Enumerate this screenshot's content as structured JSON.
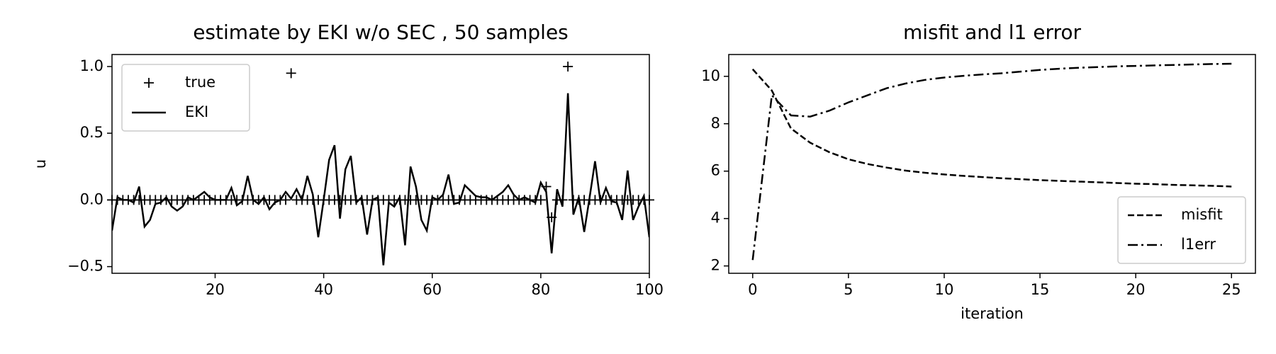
{
  "chart_data": [
    {
      "type": "line",
      "title": "estimate by EKI w/o SEC , 50 samples",
      "ylabel": "u",
      "x": [
        1,
        2,
        3,
        4,
        5,
        6,
        7,
        8,
        9,
        10,
        11,
        12,
        13,
        14,
        15,
        16,
        17,
        18,
        19,
        20,
        21,
        22,
        23,
        24,
        25,
        26,
        27,
        28,
        29,
        30,
        31,
        32,
        33,
        34,
        35,
        36,
        37,
        38,
        39,
        40,
        41,
        42,
        43,
        44,
        45,
        46,
        47,
        48,
        49,
        50,
        51,
        52,
        53,
        54,
        55,
        56,
        57,
        58,
        59,
        60,
        61,
        62,
        63,
        64,
        65,
        66,
        67,
        68,
        69,
        70,
        71,
        72,
        73,
        74,
        75,
        76,
        77,
        78,
        79,
        80,
        81,
        82,
        83,
        84,
        85,
        86,
        87,
        88,
        89,
        90,
        91,
        92,
        93,
        94,
        95,
        96,
        97,
        98,
        99,
        100
      ],
      "series": [
        {
          "name": "true",
          "color": "#000000",
          "marker": "+",
          "linestyle": "none",
          "values": [
            0,
            0,
            0,
            0,
            0,
            0,
            0,
            0,
            0,
            0,
            0,
            0,
            0,
            0,
            0,
            0,
            0,
            0,
            0,
            0,
            0,
            0,
            0,
            0,
            0,
            0,
            0,
            0,
            0,
            0,
            0,
            0,
            0,
            0.95,
            0,
            0,
            0,
            0,
            0,
            0,
            0,
            0,
            0,
            0,
            0,
            0,
            0,
            0,
            0,
            0,
            0,
            0,
            0,
            0,
            0,
            0,
            0,
            0,
            0,
            0,
            0,
            0,
            0,
            0,
            0,
            0,
            0,
            0,
            0,
            0,
            0,
            0,
            0,
            0,
            0,
            0,
            0,
            0,
            0,
            0,
            0.1,
            -0.13,
            0,
            0,
            1.0,
            0,
            0,
            0,
            0,
            0,
            0,
            0,
            0,
            0,
            0,
            0,
            0,
            0,
            0,
            0
          ]
        },
        {
          "name": "EKI",
          "color": "#000000",
          "marker": "none",
          "linestyle": "solid",
          "values": [
            -0.23,
            0.02,
            0.0,
            0.0,
            -0.02,
            0.1,
            -0.2,
            -0.15,
            -0.03,
            -0.02,
            0.02,
            -0.05,
            -0.08,
            -0.05,
            0.02,
            0.0,
            0.03,
            0.06,
            0.02,
            0.0,
            0.0,
            0.0,
            0.09,
            -0.04,
            -0.01,
            0.18,
            0.0,
            -0.03,
            0.02,
            -0.07,
            -0.02,
            0.0,
            0.06,
            0.01,
            0.08,
            0.0,
            0.18,
            0.04,
            -0.28,
            0.0,
            0.3,
            0.41,
            -0.14,
            0.23,
            0.33,
            -0.02,
            0.02,
            -0.26,
            0.0,
            0.02,
            -0.49,
            -0.02,
            -0.05,
            0.02,
            -0.34,
            0.25,
            0.1,
            -0.15,
            -0.23,
            0.02,
            0.0,
            0.04,
            0.19,
            -0.03,
            -0.02,
            0.11,
            0.07,
            0.03,
            0.02,
            0.02,
            0.0,
            0.03,
            0.06,
            0.11,
            0.04,
            0.0,
            0.02,
            0.0,
            -0.02,
            0.13,
            0.06,
            -0.4,
            0.08,
            -0.05,
            0.8,
            -0.11,
            0.02,
            -0.24,
            0.02,
            0.29,
            -0.02,
            0.09,
            -0.01,
            -0.02,
            -0.15,
            0.22,
            -0.15,
            -0.05,
            0.03,
            -0.28
          ]
        }
      ],
      "xlim": [
        1,
        100
      ],
      "xticks": [
        20,
        40,
        60,
        80,
        100
      ],
      "ylim": [
        -0.55,
        1.09
      ],
      "yticks": [
        {
          "value": -0.5,
          "label": "−0.5"
        },
        {
          "value": 0,
          "label": "0.0"
        },
        0.5,
        {
          "value": 1,
          "label": "1.0"
        }
      ],
      "legend": "upper left"
    },
    {
      "type": "line",
      "title": "misfit and l1 error",
      "xlabel": "iteration",
      "x": [
        0,
        1,
        2,
        3,
        4,
        5,
        6,
        7,
        8,
        9,
        10,
        11,
        12,
        13,
        14,
        15,
        16,
        17,
        18,
        19,
        20,
        21,
        22,
        23,
        24,
        25
      ],
      "series": [
        {
          "name": "misfit",
          "color": "#000000",
          "marker": "none",
          "linestyle": "dashed",
          "values": [
            10.3,
            9.4,
            7.8,
            7.2,
            6.8,
            6.5,
            6.3,
            6.15,
            6.02,
            5.93,
            5.86,
            5.8,
            5.75,
            5.7,
            5.66,
            5.62,
            5.59,
            5.56,
            5.53,
            5.5,
            5.47,
            5.45,
            5.42,
            5.4,
            5.38,
            5.35
          ]
        },
        {
          "name": "l1err",
          "color": "#000000",
          "marker": "none",
          "linestyle": "dashdot",
          "values": [
            2.25,
            9.2,
            8.35,
            8.3,
            8.55,
            8.9,
            9.2,
            9.5,
            9.7,
            9.85,
            9.95,
            10.02,
            10.08,
            10.13,
            10.2,
            10.27,
            10.32,
            10.36,
            10.39,
            10.42,
            10.44,
            10.46,
            10.48,
            10.5,
            10.52,
            10.53
          ]
        }
      ],
      "xlim": [
        -1.25,
        26.25
      ],
      "xticks": [
        0,
        5,
        10,
        15,
        20,
        25
      ],
      "ylim": [
        1.69,
        10.92
      ],
      "yticks": [
        2,
        4,
        6,
        8,
        10
      ],
      "legend": "lower right"
    }
  ]
}
